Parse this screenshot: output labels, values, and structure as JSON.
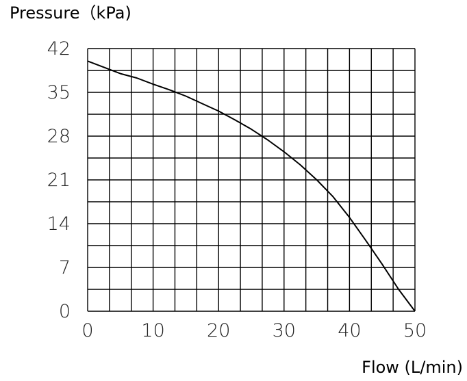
{
  "chart_data": {
    "type": "line",
    "title": "",
    "ylabel": "Pressure（kPa)",
    "xlabel": "Flow (L/min)",
    "xlim": [
      0,
      50
    ],
    "ylim": [
      0,
      42
    ],
    "x_ticks": [
      0,
      10,
      20,
      30,
      40,
      50
    ],
    "y_ticks": [
      0,
      7,
      14,
      21,
      28,
      35,
      42
    ],
    "grid": true,
    "grid_x_step": 3.333,
    "grid_y_step": 3.5,
    "series": [
      {
        "x": [
          0,
          2.5,
          5,
          7.5,
          10,
          12.5,
          15,
          17.5,
          20,
          22.5,
          25,
          27.5,
          30,
          32.5,
          35,
          37.5,
          40,
          42.5,
          45,
          47.5,
          50
        ],
        "y": [
          40.0,
          39.0,
          38.0,
          37.3,
          36.3,
          35.4,
          34.4,
          33.2,
          32.0,
          30.6,
          29.1,
          27.4,
          25.5,
          23.4,
          21.0,
          18.3,
          15.0,
          11.3,
          7.5,
          3.5,
          0
        ]
      }
    ],
    "line_color": "#000000"
  }
}
